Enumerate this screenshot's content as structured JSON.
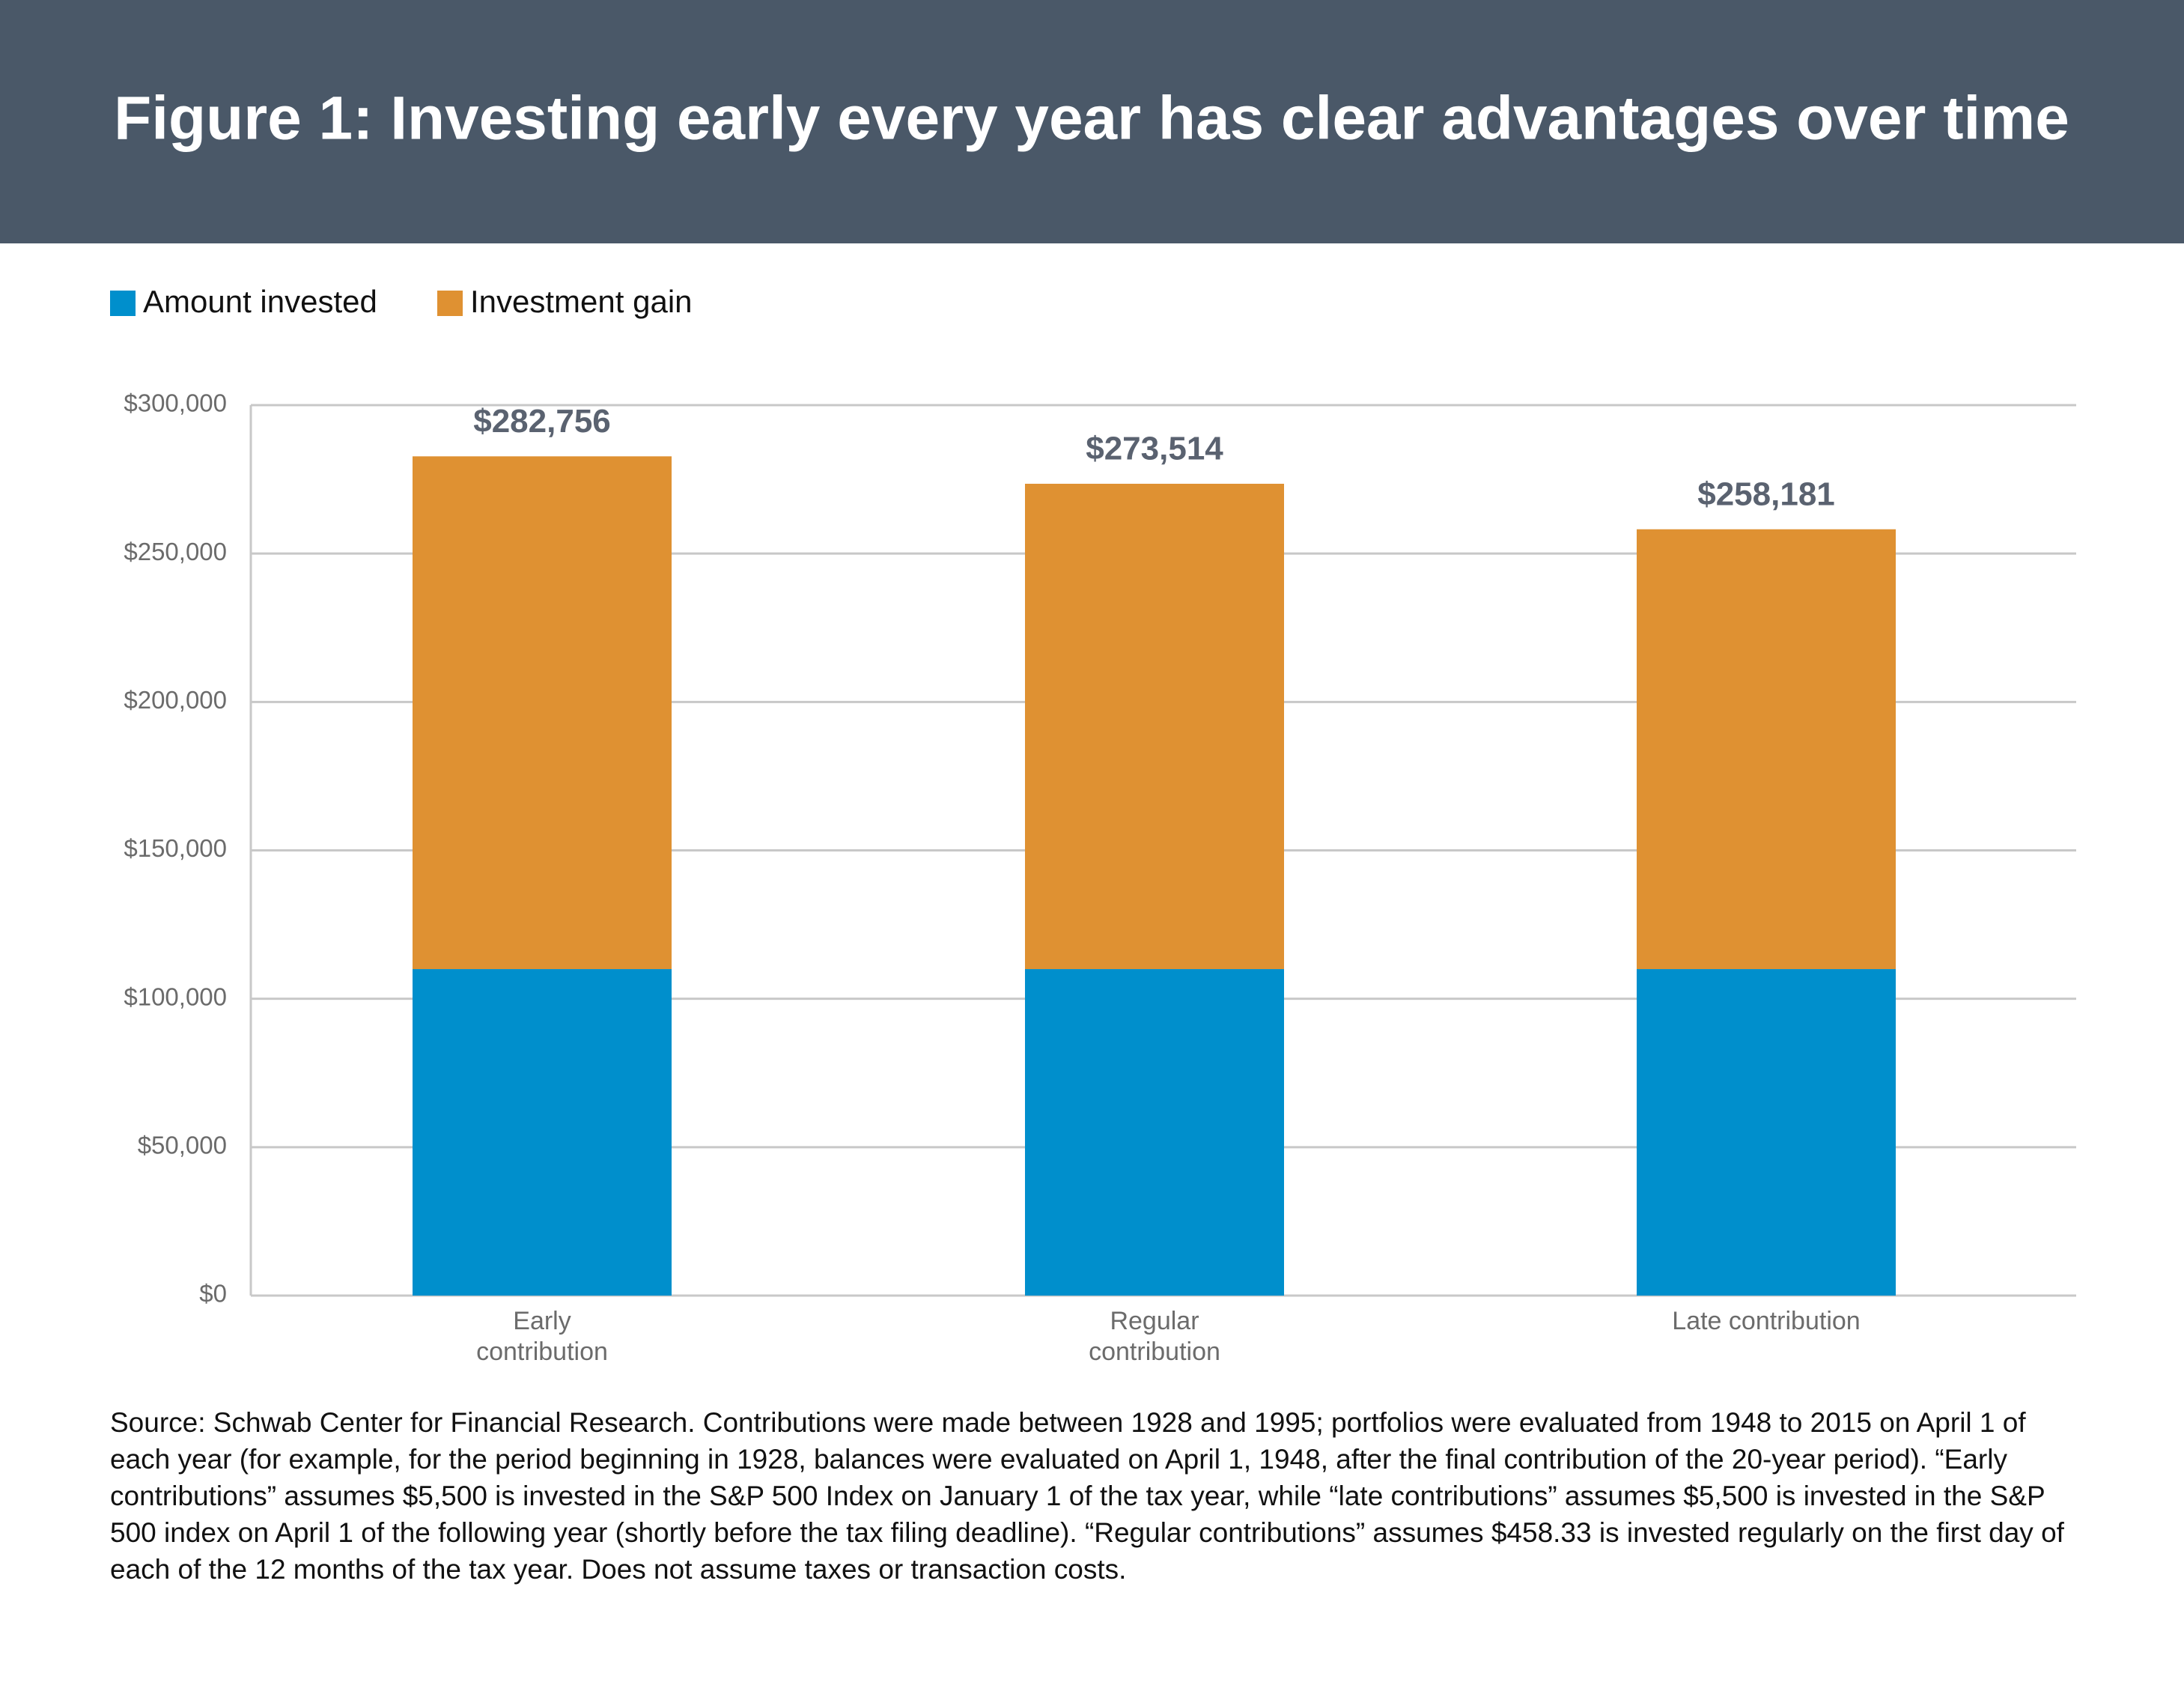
{
  "chart_data": {
    "type": "stacked-bar",
    "title": "Figure 1: Investing early every year has clear advantages over time",
    "categories": [
      "Early contribution",
      "Regular contribution",
      "Late contribution"
    ],
    "series": [
      {
        "name": "Amount invested",
        "color": "#008fcc",
        "values": [
          110000,
          110000,
          110000
        ]
      },
      {
        "name": "Investment gain",
        "color": "#df9132",
        "values": [
          172756,
          163514,
          148181
        ]
      }
    ],
    "total_labels": [
      "$282,756",
      "$273,514",
      "$258,181"
    ],
    "ylim": [
      0,
      300000
    ],
    "yticks": [
      {
        "value": 0,
        "label": "$0"
      },
      {
        "value": 50000,
        "label": "$50,000"
      },
      {
        "value": 100000,
        "label": "$100,000"
      },
      {
        "value": 150000,
        "label": "$150,000"
      },
      {
        "value": 200000,
        "label": "$200,000"
      },
      {
        "value": 250000,
        "label": "$250,000"
      },
      {
        "value": 300000,
        "label": "$300,000"
      }
    ],
    "grid": true,
    "legend": "top-left",
    "source": "Source: Schwab Center for Financial Research.  Contributions were made between 1928 and 1995; portfolios were evaluated from 1948 to 2015 on April 1 of each year (for example, for the period beginning in 1928, balances were evaluated on April 1, 1948, after the final contribution of the 20-year period). “Early contributions” assumes $5,500 is invested in the S&P 500 Index on January 1 of the tax year, while “late contributions” assumes $5,500 is invested in the S&P 500 index on April 1 of the following year (shortly before the tax filing deadline). “Regular contributions” assumes $458.33 is invested regularly on the first day of each of the 12 months of the tax year. Does not assume taxes or transaction costs."
  }
}
